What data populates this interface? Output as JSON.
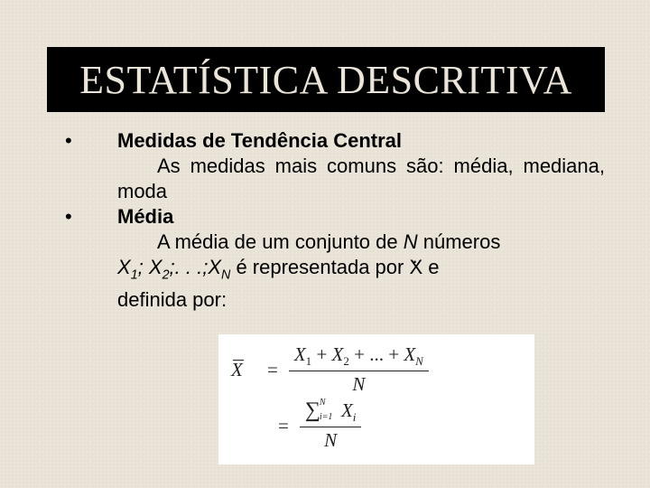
{
  "title": "ESTATÍSTICA DESCRITIVA",
  "bullets": {
    "b1": "•",
    "b2": "•"
  },
  "section1": {
    "heading": "Medidas de Tendência Central",
    "line1": "As medidas mais comuns são: média, mediana, moda"
  },
  "section2": {
    "heading": "Média",
    "intro_a": "A média de um conjunto de ",
    "N": "N",
    "intro_b": " números ",
    "seq": {
      "X": "X",
      "s1": "1",
      "sc": "; ",
      "s2": "2",
      "dots": ";. . .;",
      "sN": "N"
    },
    "rep_a": "  é representada por  ",
    "xdot": "X",
    "rep_b": " e",
    "def": "definida por:"
  },
  "formula": {
    "xbar": "X",
    "eq": "=",
    "num1": {
      "X": "X",
      "s1": "1",
      "plus": " + ",
      "s2": "2",
      "dots": " + ... + ",
      "sN": "N"
    },
    "den": "N",
    "sigma": "∑",
    "sig_up": "N",
    "sig_lo": "i=1",
    "Xi_X": "X",
    "Xi_i": "i"
  },
  "style": {
    "bg": "#ebe5d9",
    "title_bg": "#000000",
    "title_color": "#ebe4d8",
    "text_color": "#000000",
    "formula_bg": "#ffffff",
    "title_fontsize": 44,
    "body_fontsize": 22,
    "formula_fontsize": 21
  }
}
